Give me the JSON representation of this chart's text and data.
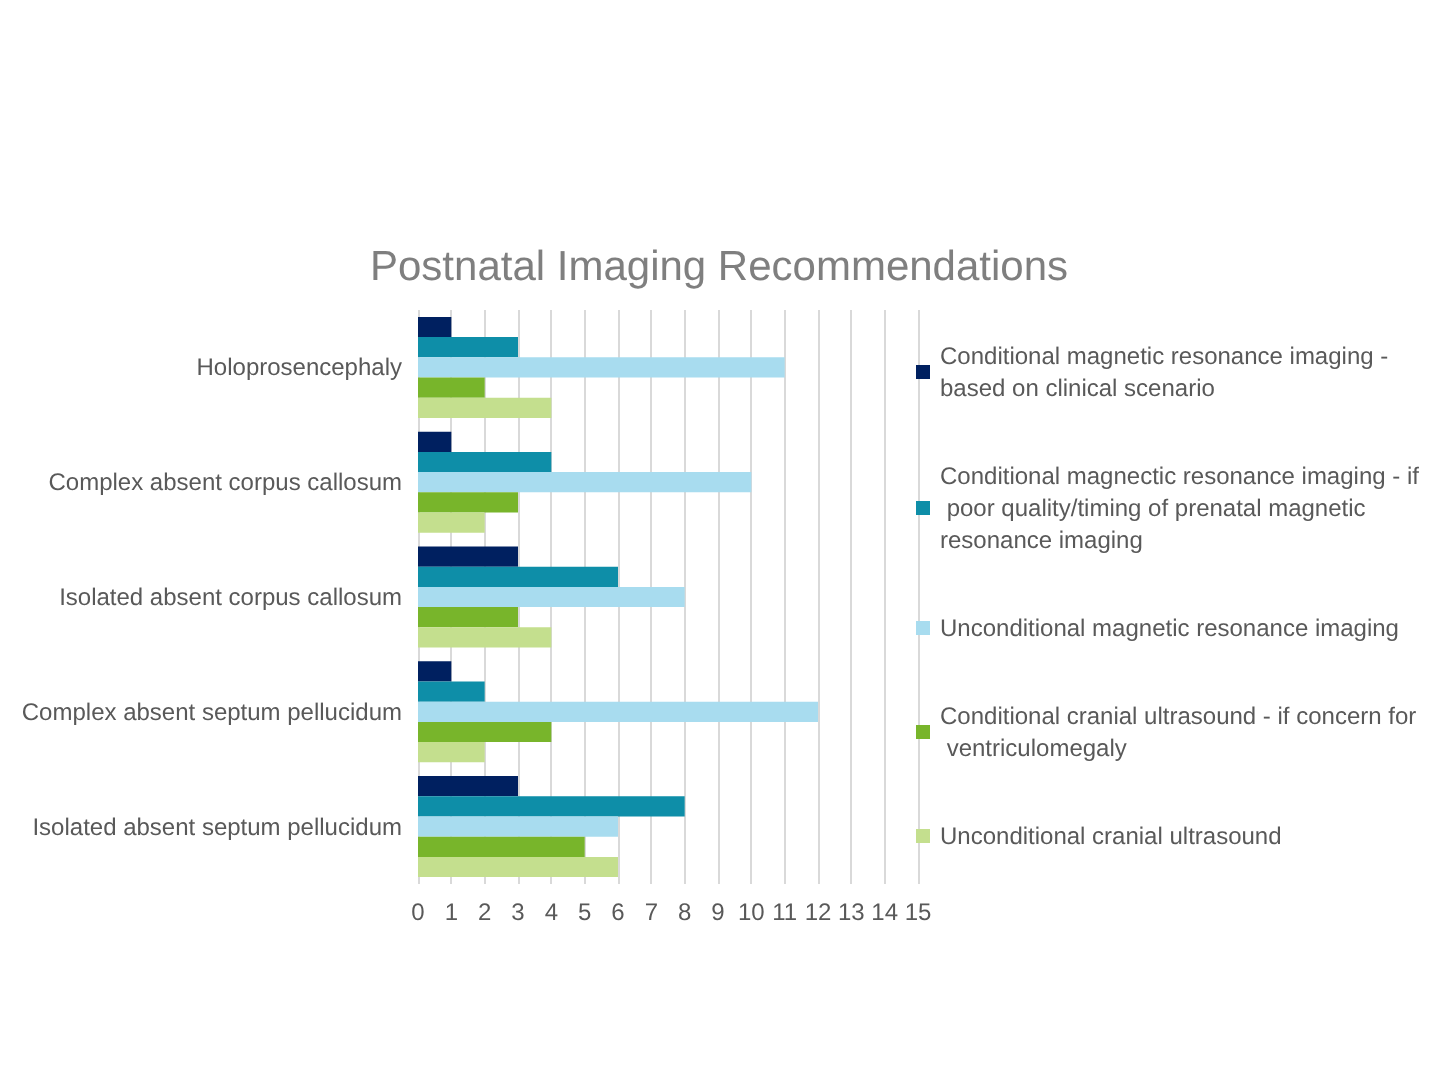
{
  "chart_data": {
    "type": "bar",
    "orientation": "horizontal",
    "title": "Postnatal Imaging Recommendations",
    "categories": [
      "Holoprosencephaly",
      "Complex absent corpus callosum",
      "Isolated absent corpus callosum",
      "Complex absent septum pellucidum",
      "Isolated absent septum pellucidum"
    ],
    "series": [
      {
        "name": "Conditional magnetic resonance imaging - based on clinical scenario",
        "color": "#002060",
        "values": [
          1,
          1,
          3,
          1,
          3
        ]
      },
      {
        "name": "Conditional magnectic resonance imaging - if poor quality/timing of prenatal magnetic resonance imaging",
        "color": "#0e8ea8",
        "values": [
          3,
          4,
          6,
          2,
          8
        ]
      },
      {
        "name": "Unconditional magnetic resonance imaging",
        "color": "#a8dcef",
        "values": [
          11,
          10,
          8,
          12,
          6
        ]
      },
      {
        "name": "Conditional cranial ultrasound - if concern for ventriculomegaly",
        "color": "#78b52b",
        "values": [
          2,
          3,
          3,
          4,
          5
        ]
      },
      {
        "name": "Unconditional cranial ultrasound",
        "color": "#c4df8e",
        "values": [
          4,
          2,
          4,
          2,
          6
        ]
      }
    ],
    "xlim": [
      0,
      15
    ],
    "xticks": [
      0,
      1,
      2,
      3,
      4,
      5,
      6,
      7,
      8,
      9,
      10,
      11,
      12,
      13,
      14,
      15
    ],
    "grid": "x",
    "legend": "right"
  }
}
